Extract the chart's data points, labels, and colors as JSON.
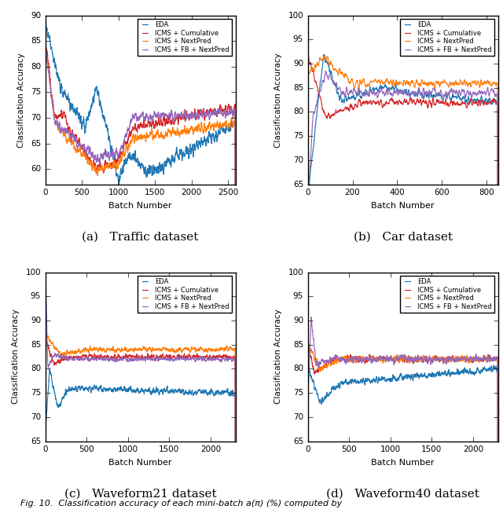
{
  "colors": {
    "EDA": "#1f77b4",
    "ICMS_Cumulative": "#d62728",
    "ICMS_NextPred": "#ff7f0e",
    "ICMS_FB_NextPred": "#9467bd"
  },
  "legend_labels": [
    "EDA",
    "ICMS + Cumulative",
    "ICMS + NextPred",
    "ICMS + FB + NextPred"
  ],
  "subplots": [
    {
      "title": "(a)   Traffic dataset",
      "xlabel": "Batch Number",
      "ylabel": "Classification Accuracy",
      "xlim": [
        0,
        2600
      ],
      "ylim": [
        57,
        90
      ],
      "yticks": [
        60,
        65,
        70,
        75,
        80,
        85,
        90
      ],
      "xticks": [
        0,
        500,
        1000,
        1500,
        2000,
        2500
      ],
      "n_points": 2600
    },
    {
      "title": "(b)   Car dataset",
      "xlabel": "Batch Number",
      "ylabel": "Classification Accuracy",
      "xlim": [
        0,
        850
      ],
      "ylim": [
        65,
        100
      ],
      "yticks": [
        65,
        70,
        75,
        80,
        85,
        90,
        95,
        100
      ],
      "xticks": [
        0,
        200,
        400,
        600,
        800
      ],
      "n_points": 850
    },
    {
      "title": "(c)   Waveform21 dataset",
      "xlabel": "Batch Number",
      "ylabel": "Classification Accuracy",
      "xlim": [
        0,
        2300
      ],
      "ylim": [
        65,
        100
      ],
      "yticks": [
        65,
        70,
        75,
        80,
        85,
        90,
        95,
        100
      ],
      "xticks": [
        0,
        500,
        1000,
        1500,
        2000
      ],
      "n_points": 2300
    },
    {
      "title": "(d)   Waveform40 dataset",
      "xlabel": "Batch Number",
      "ylabel": "Classification Accuracy",
      "xlim": [
        0,
        2300
      ],
      "ylim": [
        65,
        100
      ],
      "yticks": [
        65,
        70,
        75,
        80,
        85,
        90,
        95,
        100
      ],
      "xticks": [
        0,
        500,
        1000,
        1500,
        2000
      ],
      "n_points": 2300
    }
  ],
  "fig_caption": "Fig. 10.  Classification accuracy of each mini-batch a(π) (%) computed by"
}
